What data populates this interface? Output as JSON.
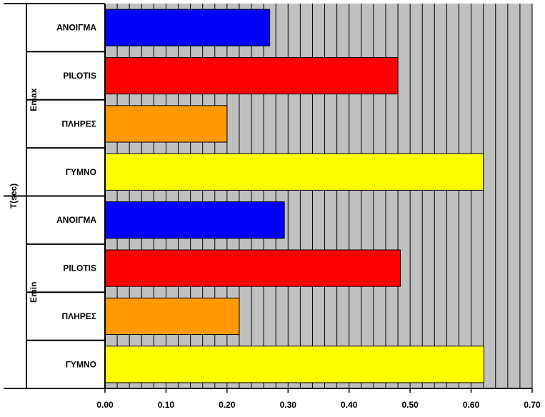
{
  "chart_data": {
    "type": "bar",
    "orientation": "horizontal",
    "ylabel": "T(sec)",
    "xlim": [
      0,
      0.7
    ],
    "x_ticks": [
      "0.00",
      "0.10",
      "0.20",
      "0.30",
      "0.40",
      "0.50",
      "0.60",
      "0.70"
    ],
    "plot_background": "#c0c0c0",
    "grid": true,
    "groups": [
      {
        "label": "Emax",
        "bars": [
          {
            "category": "ΑΝΟΙΓΜΑ",
            "value": 0.27,
            "color": "#0000ff"
          },
          {
            "category": "PILOTIS",
            "value": 0.48,
            "color": "#ff0000"
          },
          {
            "category": "ΠΛΗΡΕΣ",
            "value": 0.2,
            "color": "#ff9900"
          },
          {
            "category": "ΓΥΜΝΟ",
            "value": 0.62,
            "color": "#ffff00"
          }
        ]
      },
      {
        "label": "Emin",
        "bars": [
          {
            "category": "ΑΝΟΙΓΜΑ",
            "value": 0.294,
            "color": "#0000ff"
          },
          {
            "category": "PILOTIS",
            "value": 0.484,
            "color": "#ff0000"
          },
          {
            "category": "ΠΛΗΡΕΣ",
            "value": 0.22,
            "color": "#ff9900"
          },
          {
            "category": "ΓΥΜΝΟ",
            "value": 0.621,
            "color": "#ffff00"
          }
        ]
      }
    ]
  }
}
